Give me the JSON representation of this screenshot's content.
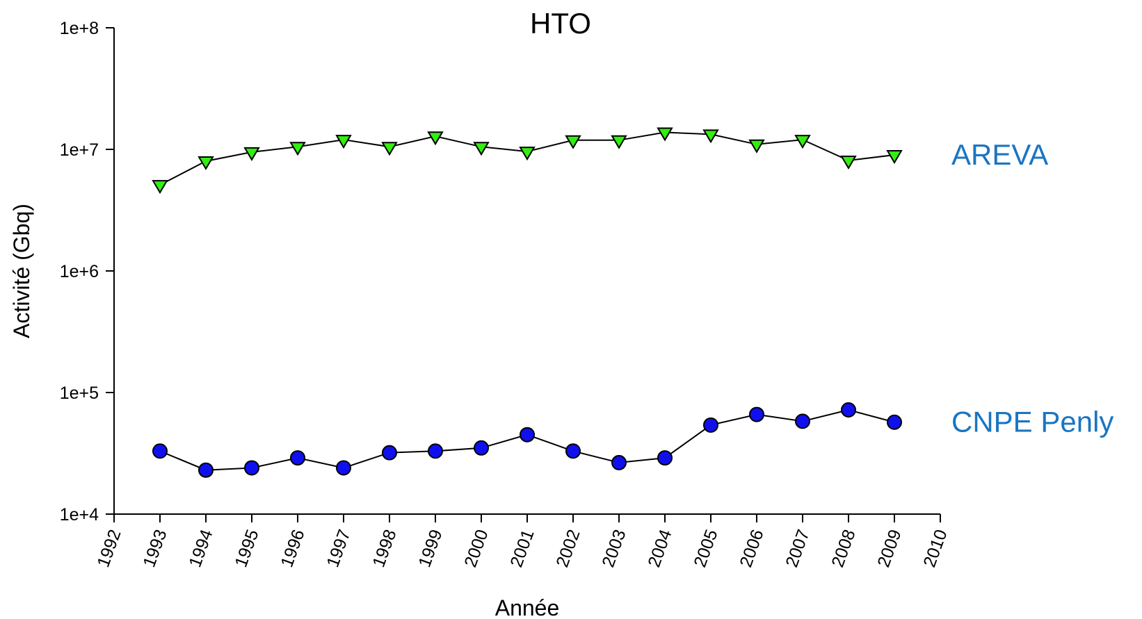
{
  "chart_data": {
    "type": "line",
    "title": "HTO",
    "xlabel": "Année",
    "ylabel": "Activité (Gbq)",
    "x_scale": "linear",
    "y_scale": "log",
    "xlim": [
      1992,
      2010
    ],
    "ylim": [
      10000,
      100000000
    ],
    "x_ticks": [
      "1992",
      "1993",
      "1994",
      "1995",
      "1996",
      "1997",
      "1998",
      "1999",
      "2000",
      "2001",
      "2002",
      "2003",
      "2004",
      "2005",
      "2006",
      "2007",
      "2008",
      "2009",
      "2010"
    ],
    "y_ticks": [
      "1e+4",
      "1e+5",
      "1e+6",
      "1e+7",
      "1e+8"
    ],
    "x": [
      1993,
      1994,
      1995,
      1996,
      1997,
      1998,
      1999,
      2000,
      2001,
      2002,
      2003,
      2004,
      2005,
      2006,
      2007,
      2008,
      2009
    ],
    "grid": false,
    "series": [
      {
        "name": "AREVA",
        "marker": "triangle-down",
        "marker_color": "#33ee11",
        "label_color": "#1a75c2",
        "values": [
          5100000,
          8000000,
          9500000,
          10500000,
          12000000,
          10500000,
          12800000,
          10500000,
          9600000,
          11900000,
          11900000,
          13800000,
          13300000,
          11000000,
          12000000,
          8100000,
          9000000
        ]
      },
      {
        "name": "CNPE Penly",
        "marker": "circle",
        "marker_color": "#1010ee",
        "label_color": "#1a75c2",
        "values": [
          33000,
          23000,
          24000,
          29000,
          24000,
          32000,
          33000,
          35000,
          45000,
          33000,
          26500,
          29000,
          54000,
          66000,
          58000,
          72000,
          57000
        ]
      }
    ]
  }
}
